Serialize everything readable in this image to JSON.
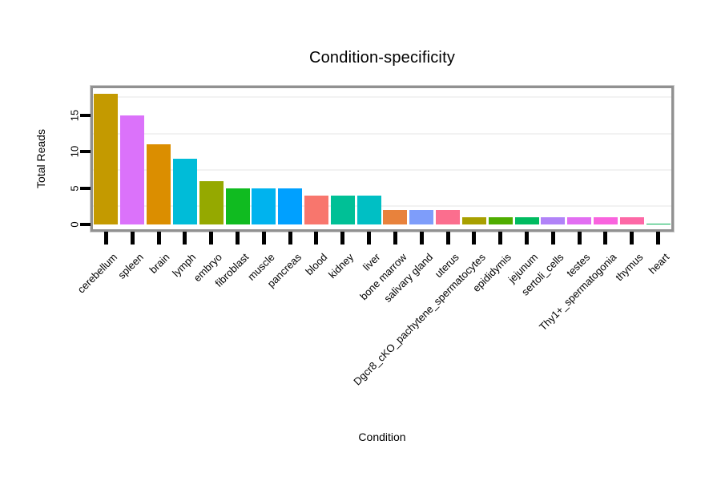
{
  "chart_data": {
    "type": "bar",
    "title": "Condition-specificity",
    "xlabel": "Condition",
    "ylabel": "Total Reads",
    "categories": [
      "cerebellum",
      "spleen",
      "brain",
      "lymph",
      "embryo",
      "fibroblast",
      "muscle",
      "pancreas",
      "blood",
      "kidney",
      "liver",
      "bone marrow",
      "salivary gland",
      "uterus",
      "Dgcr8_cKO_pachytene_spermatocytes",
      "epididymis",
      "jejunum",
      "sertoli_cells",
      "testes",
      "Thy1+_spermatogonia",
      "thymus",
      "heart"
    ],
    "values": [
      18,
      15,
      11,
      9,
      6,
      5,
      5,
      5,
      4,
      4,
      4,
      2,
      2,
      2,
      1,
      1,
      1,
      1,
      1,
      1,
      1,
      0.1
    ],
    "colors": [
      "#C49A00",
      "#DB72FA",
      "#DB8E00",
      "#00BCD8",
      "#95A900",
      "#10BB20",
      "#00B3EE",
      "#00A0FF",
      "#F8766D",
      "#00C096",
      "#00BFC4",
      "#E8823C",
      "#7E9DFA",
      "#FB6E8E",
      "#A8A000",
      "#4FAD00",
      "#00BB60",
      "#B183F8",
      "#E26EF2",
      "#F963DE",
      "#FD68A6",
      "#00B153"
    ],
    "yticks": [
      "0",
      "5",
      "10",
      "15"
    ],
    "ytick_values": [
      0,
      5,
      10,
      15
    ],
    "minor_gridline_values": [
      2.5,
      7.5,
      12.5,
      17.5
    ],
    "ylim": [
      -0.7,
      18.7
    ],
    "grid": "minor-horizontal-only",
    "legend": "none",
    "styles": {
      "panel_border": "#919191",
      "grid_minor": "#f2f2f2",
      "tick_color": "#000000",
      "text_color": "#000000",
      "background": "#ffffff"
    }
  }
}
